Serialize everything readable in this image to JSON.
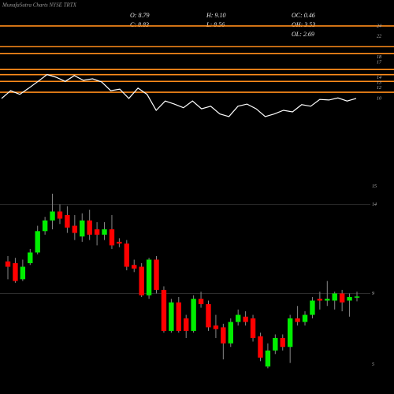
{
  "title": "MunafaSutra Charts NYSE TRTX",
  "info": [
    "O: 8.79",
    "C: 8.83",
    "H: 9.10",
    "L: 8.56",
    "OC: 0.46",
    "OH: 3.53",
    "OL: 2.69"
  ],
  "chart_data": [
    {
      "type": "line",
      "ylim": [
        -6,
        27.5
      ],
      "yticks": [
        24,
        22,
        18,
        17,
        14,
        13,
        12,
        10
      ],
      "levels": [
        24,
        20,
        18.7,
        15.6,
        14.6,
        13.3,
        11.2
      ],
      "level_color": "#ff8c1a",
      "color": "#ffffff",
      "values": [
        10.0,
        11.5,
        10.8,
        12.0,
        13.3,
        14.6,
        14.1,
        13.3,
        14.4,
        13.5,
        13.8,
        13.2,
        11.5,
        11.8,
        10.0,
        12.0,
        10.8,
        7.7,
        9.5,
        8.9,
        8.2,
        9.5,
        8.0,
        8.5,
        7.0,
        6.5,
        8.5,
        8.9,
        8.0,
        6.5,
        7.0,
        7.7,
        7.4,
        8.8,
        8.5,
        9.8,
        9.7,
        10.1,
        9.5,
        10.0
      ]
    },
    {
      "type": "candlestick",
      "ylim": [
        3.8,
        15.3
      ],
      "yticks": [
        15,
        14,
        9,
        5
      ],
      "grid_ticks": [
        14,
        9
      ],
      "up_color": "#00ee00",
      "down_color": "#ff0000",
      "open": [
        10.8,
        10.7,
        9.8,
        10.7,
        11.3,
        12.5,
        13.1,
        13.6,
        13.4,
        12.8,
        12.2,
        13.1,
        12.6,
        12.3,
        12.6,
        11.9,
        11.8,
        10.6,
        10.5,
        8.9,
        10.9,
        9.2,
        6.9,
        8.5,
        7.6,
        6.9,
        8.7,
        8.4,
        7.2,
        7.1,
        6.2,
        7.4,
        7.7,
        7.6,
        6.6,
        4.9,
        5.8,
        6.5,
        6.0,
        7.6,
        7.4,
        7.8,
        8.7,
        8.6,
        8.6,
        9.0,
        8.6,
        8.79
      ],
      "close": [
        10.5,
        9.7,
        10.5,
        11.3,
        12.5,
        13.1,
        13.6,
        13.2,
        12.7,
        12.4,
        13.1,
        12.3,
        12.3,
        12.6,
        11.7,
        11.8,
        10.5,
        10.4,
        8.9,
        10.9,
        9.2,
        6.9,
        8.5,
        6.9,
        6.9,
        8.7,
        8.4,
        7.1,
        7.0,
        6.2,
        7.4,
        7.8,
        7.4,
        6.5,
        5.4,
        5.8,
        6.5,
        6.0,
        7.6,
        7.4,
        7.8,
        8.6,
        8.6,
        8.7,
        9.0,
        8.5,
        8.8,
        8.83
      ],
      "high": [
        11.1,
        11.0,
        10.9,
        11.5,
        12.8,
        13.3,
        14.6,
        14.0,
        13.9,
        13.4,
        13.5,
        13.7,
        13.0,
        13.0,
        13.4,
        12.1,
        12.0,
        10.9,
        10.7,
        11.0,
        11.1,
        9.4,
        8.7,
        8.8,
        7.8,
        8.9,
        9.1,
        8.6,
        7.8,
        7.3,
        7.6,
        8.1,
        8.0,
        7.8,
        6.8,
        6.2,
        6.7,
        6.7,
        7.8,
        8.3,
        8.0,
        8.8,
        9.1,
        9.7,
        9.1,
        9.2,
        9.0,
        9.1
      ],
      "low": [
        9.8,
        9.6,
        9.7,
        10.6,
        11.2,
        12.3,
        12.6,
        12.9,
        12.4,
        12.0,
        11.9,
        12.0,
        11.7,
        12.0,
        11.5,
        11.6,
        10.3,
        10.2,
        8.8,
        8.7,
        9.0,
        6.8,
        6.8,
        6.8,
        6.5,
        6.8,
        8.2,
        6.9,
        6.5,
        5.3,
        6.0,
        7.2,
        7.2,
        6.3,
        5.2,
        4.8,
        5.6,
        5.8,
        5.1,
        7.2,
        7.2,
        7.6,
        8.1,
        8.3,
        8.1,
        8.0,
        7.7,
        8.56
      ]
    }
  ]
}
